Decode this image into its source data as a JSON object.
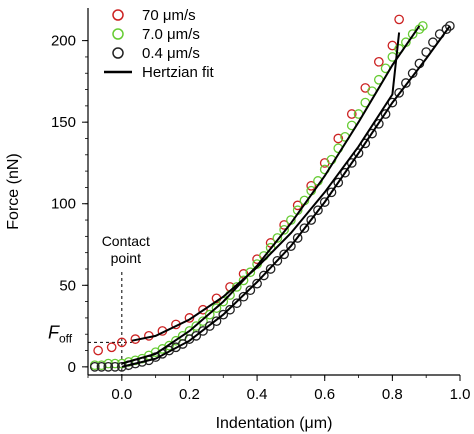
{
  "chart_data": {
    "type": "scatter",
    "xlabel": "Indentation (μm)",
    "ylabel": "Force (nN)",
    "xlim": [
      -0.1,
      1.0
    ],
    "ylim": [
      -5,
      220
    ],
    "x_ticks": [
      "0.0",
      "0.2",
      "0.4",
      "0.6",
      "0.8",
      "1.0"
    ],
    "x_tick_values": [
      0.0,
      0.2,
      0.4,
      0.6,
      0.8,
      1.0
    ],
    "y_ticks": [
      "0",
      "50",
      "100",
      "150",
      "200"
    ],
    "y_tick_values": [
      0,
      50,
      100,
      150,
      200
    ],
    "legend_position": "top-left",
    "grid": false,
    "series": [
      {
        "name": "70 μm/s",
        "marker": "open-circle",
        "color": "#cc2222",
        "x": [
          -0.07,
          -0.03,
          0.0,
          0.04,
          0.08,
          0.12,
          0.16,
          0.2,
          0.24,
          0.28,
          0.32,
          0.36,
          0.4,
          0.44,
          0.48,
          0.52,
          0.56,
          0.6,
          0.64,
          0.68,
          0.72,
          0.76,
          0.8,
          0.82
        ],
        "y": [
          10,
          12,
          15,
          17,
          19,
          22,
          26,
          30,
          35,
          42,
          49,
          57,
          66,
          76,
          87,
          99,
          111,
          125,
          140,
          155,
          171,
          187,
          197,
          213
        ]
      },
      {
        "name": "7.0 μm/s",
        "marker": "open-circle",
        "color": "#66cc33",
        "x": [
          -0.08,
          -0.06,
          -0.04,
          -0.02,
          0.0,
          0.02,
          0.04,
          0.06,
          0.08,
          0.1,
          0.12,
          0.14,
          0.16,
          0.18,
          0.2,
          0.22,
          0.24,
          0.26,
          0.28,
          0.3,
          0.32,
          0.34,
          0.36,
          0.38,
          0.4,
          0.42,
          0.44,
          0.46,
          0.48,
          0.5,
          0.52,
          0.54,
          0.56,
          0.58,
          0.6,
          0.62,
          0.64,
          0.66,
          0.68,
          0.7,
          0.72,
          0.74,
          0.76,
          0.78,
          0.8,
          0.82,
          0.84,
          0.86,
          0.88,
          0.89
        ],
        "y": [
          1,
          1,
          2,
          2,
          2,
          3,
          4,
          5,
          7,
          9,
          11,
          13,
          16,
          19,
          22,
          25,
          28,
          32,
          36,
          40,
          44,
          49,
          53,
          58,
          63,
          68,
          73,
          79,
          84,
          90,
          96,
          102,
          108,
          114,
          121,
          127,
          134,
          141,
          148,
          155,
          162,
          169,
          176,
          183,
          190,
          195,
          199,
          204,
          207,
          209
        ]
      },
      {
        "name": "0.4 μm/s",
        "marker": "open-circle",
        "color": "#222222",
        "x": [
          -0.08,
          -0.06,
          -0.04,
          -0.02,
          0.0,
          0.02,
          0.04,
          0.06,
          0.08,
          0.1,
          0.12,
          0.14,
          0.16,
          0.18,
          0.2,
          0.22,
          0.24,
          0.26,
          0.28,
          0.3,
          0.32,
          0.34,
          0.36,
          0.38,
          0.4,
          0.42,
          0.44,
          0.46,
          0.48,
          0.5,
          0.52,
          0.54,
          0.56,
          0.58,
          0.6,
          0.62,
          0.64,
          0.66,
          0.68,
          0.7,
          0.72,
          0.74,
          0.76,
          0.78,
          0.8,
          0.82,
          0.84,
          0.86,
          0.88,
          0.9,
          0.92,
          0.94,
          0.96,
          0.97
        ],
        "y": [
          0,
          0,
          0,
          0,
          0,
          1,
          2,
          3,
          4,
          6,
          8,
          10,
          12,
          14,
          17,
          19,
          22,
          25,
          28,
          32,
          35,
          39,
          43,
          47,
          51,
          56,
          60,
          65,
          69,
          74,
          79,
          85,
          90,
          96,
          101,
          107,
          113,
          119,
          125,
          131,
          137,
          143,
          149,
          155,
          162,
          168,
          174,
          180,
          186,
          193,
          199,
          204,
          207,
          209
        ]
      }
    ],
    "fits": [
      {
        "name": "Hertzian fit",
        "color": "#000000",
        "x": [
          0.03,
          0.1,
          0.2,
          0.3,
          0.4,
          0.5,
          0.6,
          0.7,
          0.8,
          0.82
        ],
        "y": [
          16,
          19,
          29,
          43,
          61,
          82,
          107,
          135,
          167,
          205
        ]
      },
      {
        "name": "",
        "color": "#000000",
        "x": [
          0.0,
          0.1,
          0.2,
          0.3,
          0.4,
          0.5,
          0.6,
          0.7,
          0.8,
          0.88
        ],
        "y": [
          2,
          8,
          22,
          40,
          62,
          88,
          117,
          150,
          185,
          209
        ]
      },
      {
        "name": "",
        "color": "#000000",
        "x": [
          0.0,
          0.1,
          0.2,
          0.3,
          0.4,
          0.5,
          0.6,
          0.7,
          0.8,
          0.9,
          0.97
        ],
        "y": [
          0,
          5,
          16,
          32,
          52,
          74,
          101,
          131,
          162,
          189,
          209
        ]
      }
    ],
    "annotations": {
      "contact_point_label": "Contact\npoint",
      "contact_point_x": 0.0,
      "f_off_main": "F",
      "f_off_sub": "off",
      "f_off_value": 15
    }
  },
  "legend": [
    {
      "label": "70 μm/s",
      "color": "#cc2222",
      "kind": "circle"
    },
    {
      "label": "7.0 μm/s",
      "color": "#66cc33",
      "kind": "circle"
    },
    {
      "label": "0.4 μm/s",
      "color": "#222222",
      "kind": "circle"
    },
    {
      "label": "Hertzian fit",
      "color": "#000000",
      "kind": "line"
    }
  ]
}
